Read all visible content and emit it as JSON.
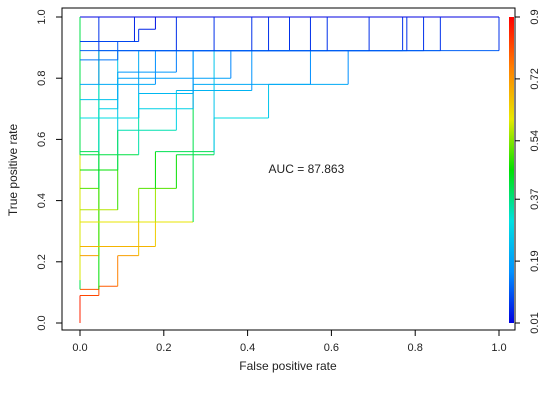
{
  "chart_data": {
    "type": "line",
    "title": "",
    "xlabel": "False positive rate",
    "ylabel": "True positive rate",
    "xlim": [
      0,
      1
    ],
    "ylim": [
      0,
      1
    ],
    "x_ticks": [
      "0.0",
      "0.2",
      "0.4",
      "0.6",
      "0.8",
      "1.0"
    ],
    "y_ticks": [
      "0.0",
      "0.2",
      "0.4",
      "0.6",
      "0.8",
      "1.0"
    ],
    "grid": false,
    "annotation": {
      "label": "AUC = ",
      "value": "87.863",
      "x": 0.45,
      "y": 0.49
    },
    "colorbar": {
      "position": "right",
      "min": 0.01,
      "max": 0.9,
      "tick_labels": [
        "0.01",
        "0.19",
        "0.37",
        "0.54",
        "0.72",
        "0.9"
      ],
      "colors": [
        "#0000e0",
        "#0090ff",
        "#00e0e0",
        "#00e000",
        "#e8e800",
        "#ff8000",
        "#ff0000"
      ]
    },
    "curves": [
      {
        "points": [
          [
            0,
            0
          ],
          [
            0,
            0.09
          ],
          [
            0.045,
            0.09
          ],
          [
            0.045,
            0.12
          ],
          [
            0.09,
            0.12
          ],
          [
            0.09,
            0.22
          ],
          [
            0.14,
            0.22
          ],
          [
            0.14,
            0.33
          ],
          [
            0.18,
            0.33
          ],
          [
            0.18,
            0.44
          ],
          [
            0.23,
            0.44
          ],
          [
            0.23,
            0.55
          ],
          [
            0.32,
            0.55
          ],
          [
            0.32,
            0.67
          ],
          [
            0.45,
            0.67
          ],
          [
            0.45,
            0.78
          ],
          [
            0.64,
            0.78
          ],
          [
            0.64,
            0.89
          ],
          [
            1,
            0.89
          ],
          [
            1,
            1
          ],
          [
            0,
            1
          ]
        ]
      },
      {
        "points": [
          [
            0,
            0.11
          ],
          [
            0.045,
            0.11
          ],
          [
            0.045,
            0.89
          ],
          [
            0.77,
            0.89
          ],
          [
            0.77,
            1
          ],
          [
            0,
            1
          ],
          [
            0,
            0.11
          ]
        ]
      },
      {
        "points": [
          [
            0,
            0.14
          ],
          [
            0,
            0.55
          ],
          [
            0.09,
            0.55
          ],
          [
            0.09,
            0.89
          ],
          [
            0.86,
            0.89
          ],
          [
            0.86,
            1
          ]
        ]
      },
      {
        "points": [
          [
            0,
            0.22
          ],
          [
            0.045,
            0.22
          ],
          [
            0.045,
            0.67
          ],
          [
            0.14,
            0.67
          ],
          [
            0.14,
            0.89
          ],
          [
            0.82,
            0.89
          ],
          [
            0.82,
            1
          ]
        ]
      },
      {
        "points": [
          [
            0,
            0.25
          ],
          [
            0.18,
            0.25
          ],
          [
            0.18,
            0.33
          ],
          [
            0.27,
            0.33
          ],
          [
            0.27,
            0.78
          ],
          [
            0.55,
            0.78
          ],
          [
            0.55,
            0.89
          ],
          [
            0.78,
            0.89
          ],
          [
            0.78,
            1
          ]
        ]
      },
      {
        "points": [
          [
            0,
            0.33
          ],
          [
            0.14,
            0.33
          ],
          [
            0.14,
            0.44
          ],
          [
            0.18,
            0.44
          ],
          [
            0.18,
            0.56
          ],
          [
            0.32,
            0.56
          ],
          [
            0.32,
            0.89
          ],
          [
            0.69,
            0.89
          ],
          [
            0.69,
            1
          ]
        ]
      },
      {
        "points": [
          [
            0,
            0.37
          ],
          [
            0.09,
            0.37
          ],
          [
            0.09,
            0.55
          ],
          [
            0.14,
            0.55
          ],
          [
            0.14,
            0.7
          ],
          [
            0.27,
            0.7
          ],
          [
            0.27,
            0.89
          ],
          [
            0.5,
            0.89
          ],
          [
            0.5,
            1
          ]
        ]
      },
      {
        "points": [
          [
            0,
            0.44
          ],
          [
            0.045,
            0.44
          ],
          [
            0.045,
            0.7
          ],
          [
            0.09,
            0.7
          ],
          [
            0.09,
            0.8
          ],
          [
            0.36,
            0.8
          ],
          [
            0.36,
            0.89
          ],
          [
            0.59,
            0.89
          ],
          [
            0.59,
            1
          ]
        ]
      },
      {
        "points": [
          [
            0,
            0.5
          ],
          [
            0.09,
            0.5
          ],
          [
            0.09,
            0.63
          ],
          [
            0.23,
            0.63
          ],
          [
            0.23,
            0.76
          ],
          [
            0.41,
            0.76
          ],
          [
            0.41,
            0.89
          ],
          [
            0.55,
            0.89
          ],
          [
            0.55,
            1
          ]
        ]
      },
      {
        "points": [
          [
            0,
            0.56
          ],
          [
            0.045,
            0.56
          ],
          [
            0.045,
            0.78
          ],
          [
            0.18,
            0.78
          ],
          [
            0.18,
            0.89
          ],
          [
            0.45,
            0.89
          ],
          [
            0.45,
            1
          ]
        ]
      },
      {
        "points": [
          [
            0,
            0.67
          ],
          [
            0.14,
            0.67
          ],
          [
            0.14,
            0.75
          ],
          [
            0.27,
            0.75
          ],
          [
            0.27,
            0.89
          ],
          [
            0.41,
            0.89
          ],
          [
            0.41,
            1
          ]
        ]
      },
      {
        "points": [
          [
            0,
            0.73
          ],
          [
            0.09,
            0.73
          ],
          [
            0.09,
            0.82
          ],
          [
            0.23,
            0.82
          ],
          [
            0.23,
            0.89
          ],
          [
            0.32,
            0.89
          ],
          [
            0.32,
            1
          ]
        ]
      },
      {
        "points": [
          [
            0,
            0.78
          ],
          [
            0.045,
            0.78
          ],
          [
            0.045,
            0.89
          ],
          [
            0.23,
            0.89
          ],
          [
            0.23,
            1
          ]
        ]
      },
      {
        "points": [
          [
            0,
            0.86
          ],
          [
            0.09,
            0.86
          ],
          [
            0.09,
            0.92
          ],
          [
            0.14,
            0.92
          ],
          [
            0.14,
            0.96
          ],
          [
            0.18,
            0.96
          ],
          [
            0.18,
            1
          ]
        ]
      },
      {
        "points": [
          [
            0,
            0.89
          ],
          [
            0.045,
            0.89
          ],
          [
            0.045,
            1
          ]
        ]
      },
      {
        "points": [
          [
            0,
            0.92
          ],
          [
            0.13,
            0.92
          ],
          [
            0.13,
            1
          ]
        ]
      }
    ]
  }
}
